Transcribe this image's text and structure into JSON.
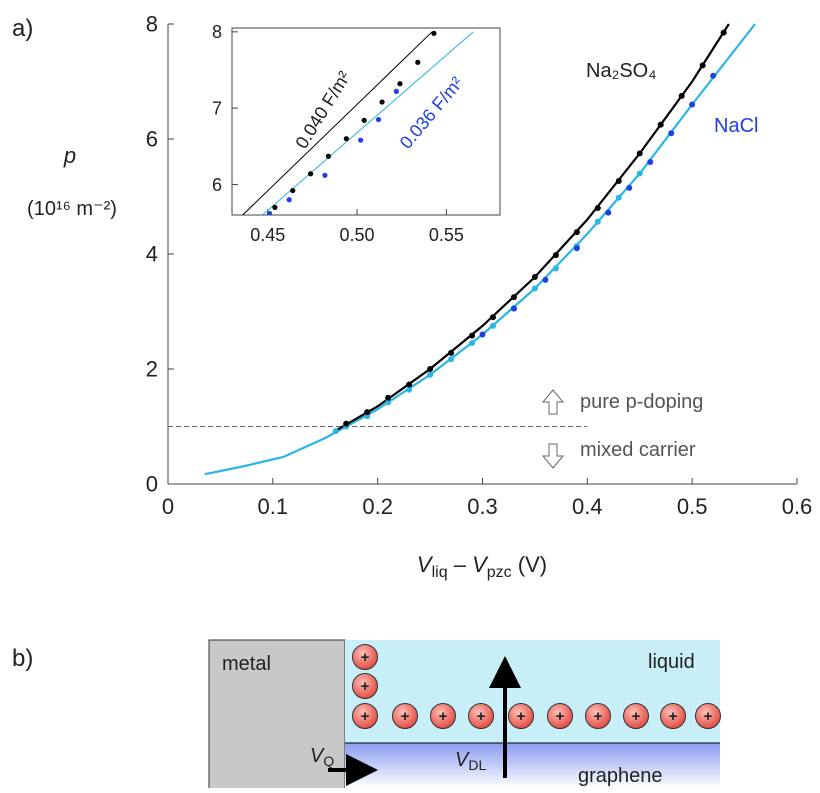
{
  "panel_labels": [
    "a)",
    "b)"
  ],
  "chart_data": [
    {
      "type": "line",
      "y_label": "p",
      "y_unit": "(10¹⁶ m⁻²)",
      "x_label": [
        "V",
        "liq",
        " – ",
        "V",
        "pzc",
        " (V)"
      ],
      "xlim": [
        0,
        0.6
      ],
      "ylim": [
        0,
        8
      ],
      "xticks": [
        0,
        0.1,
        0.2,
        0.3,
        0.4,
        0.5,
        0.6
      ],
      "yticks": [
        0,
        2,
        4,
        6,
        8
      ],
      "annotations": [
        "Na₂SO₄",
        "NaCl",
        "pure p-doping",
        "mixed carrier"
      ],
      "reference_line": {
        "y": 1,
        "x": [
          0,
          0.4
        ]
      },
      "series": [
        {
          "mode": "line",
          "color": "#29b6e6",
          "x": [
            0.035,
            0.07,
            0.11,
            0.15,
            0.2,
            0.25,
            0.3,
            0.35,
            0.4,
            0.45,
            0.5,
            0.56
          ],
          "values": [
            0.17,
            0.3,
            0.47,
            0.8,
            1.3,
            1.9,
            2.6,
            3.4,
            4.35,
            5.4,
            6.6,
            8.0
          ]
        },
        {
          "mode": "line",
          "color": "#000000",
          "x": [
            0.16,
            0.2,
            0.25,
            0.3,
            0.35,
            0.4,
            0.45,
            0.5,
            0.535
          ],
          "values": [
            0.93,
            1.35,
            2.0,
            2.75,
            3.6,
            4.6,
            5.75,
            7.0,
            8.0
          ]
        },
        {
          "mode": "markers",
          "color": "#29b6e6",
          "x": [
            0.16,
            0.17,
            0.19,
            0.21,
            0.23,
            0.25,
            0.27,
            0.29,
            0.31,
            0.33,
            0.35,
            0.37,
            0.39,
            0.41,
            0.43,
            0.45
          ],
          "values": [
            0.92,
            1.0,
            1.18,
            1.42,
            1.64,
            1.9,
            2.17,
            2.45,
            2.75,
            3.06,
            3.4,
            3.75,
            4.14,
            4.56,
            4.98,
            5.4
          ]
        },
        {
          "mode": "markers",
          "color": "#1f3fe0",
          "x": [
            0.3,
            0.33,
            0.36,
            0.39,
            0.42,
            0.44,
            0.46,
            0.48,
            0.5,
            0.52
          ],
          "values": [
            2.6,
            3.05,
            3.55,
            4.1,
            4.72,
            5.15,
            5.6,
            6.1,
            6.6,
            7.1
          ]
        },
        {
          "mode": "markers",
          "color": "#000000",
          "x": [
            0.17,
            0.19,
            0.21,
            0.23,
            0.25,
            0.27,
            0.29,
            0.31,
            0.33,
            0.35,
            0.37,
            0.39,
            0.41,
            0.43,
            0.45,
            0.47,
            0.49,
            0.51,
            0.53
          ],
          "values": [
            1.05,
            1.25,
            1.5,
            1.73,
            2.0,
            2.28,
            2.58,
            2.9,
            3.25,
            3.6,
            3.98,
            4.38,
            4.8,
            5.27,
            5.75,
            6.25,
            6.75,
            7.28,
            7.85
          ]
        }
      ]
    },
    {
      "type": "line",
      "inset": true,
      "xlim": [
        0.43,
        0.58
      ],
      "ylim": [
        5.6,
        8.05
      ],
      "xticks": [
        0.45,
        {
          "value": 0.5,
          "label": "0.50"
        },
        0.55
      ],
      "yticks": [
        6,
        7,
        8
      ],
      "annotations": [
        "0.040 F/m²",
        "0.036 F/m²"
      ],
      "series": [
        {
          "mode": "line",
          "color": "#000000",
          "x": [
            0.436,
            0.542
          ],
          "values": [
            5.6,
            8.0
          ]
        },
        {
          "mode": "line",
          "color": "#29b6e6",
          "x": [
            0.447,
            0.565
          ],
          "values": [
            5.6,
            8.0
          ]
        },
        {
          "mode": "markers",
          "color": "#000000",
          "x": [
            0.454,
            0.464,
            0.474,
            0.484,
            0.494,
            0.504,
            0.514,
            0.524,
            0.534,
            0.543
          ],
          "values": [
            5.7,
            5.92,
            6.14,
            6.37,
            6.6,
            6.84,
            7.08,
            7.32,
            7.6,
            7.98
          ]
        },
        {
          "mode": "markers",
          "color": "#1f3fe0",
          "x": [
            0.451,
            0.462,
            0.482,
            0.502,
            0.512,
            0.522
          ],
          "values": [
            5.62,
            5.8,
            6.12,
            6.58,
            6.85,
            7.22
          ]
        }
      ]
    }
  ],
  "diagram": {
    "metal": "metal",
    "liquid": "liquid",
    "graphene": "graphene",
    "ion_sign": "+",
    "v_q": [
      "V",
      "Q"
    ],
    "v_dl": [
      "V",
      "DL"
    ]
  }
}
